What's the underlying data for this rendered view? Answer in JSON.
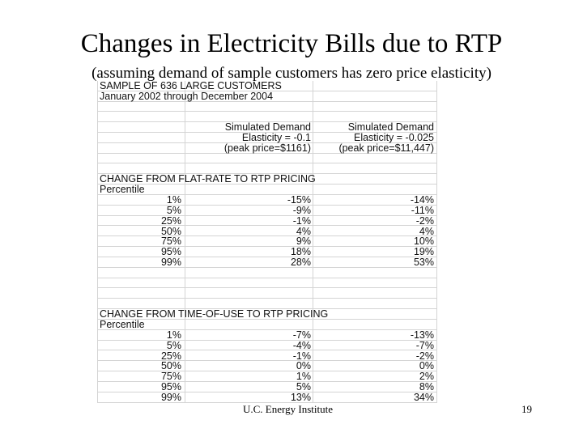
{
  "slide": {
    "title": "Changes in Electricity Bills due to RTP",
    "subtitle": "(assuming demand of sample customers has zero price elasticity)",
    "footer": "U.C. Energy Institute",
    "page_number": "19"
  },
  "table": {
    "rows": [
      [
        "SAMPLE OF 636 LARGE CUSTOMERS",
        "",
        ""
      ],
      [
        "January 2002 through December 2004",
        "",
        ""
      ],
      [
        "",
        "",
        ""
      ],
      [
        "",
        "",
        ""
      ],
      [
        "",
        "Simulated Demand",
        "Simulated Demand"
      ],
      [
        "",
        "Elasticity = -0.1",
        "Elasticity = -0.025"
      ],
      [
        "",
        "(peak price=$1161)",
        "(peak price=$11,447)"
      ],
      [
        "",
        "",
        ""
      ],
      [
        "",
        "",
        ""
      ],
      [
        "CHANGE FROM FLAT-RATE TO RTP PRICING",
        "",
        ""
      ],
      [
        "Percentile",
        "",
        ""
      ],
      [
        "1%",
        "-15%",
        "-14%"
      ],
      [
        "5%",
        "-9%",
        "-11%"
      ],
      [
        "25%",
        "-1%",
        "-2%"
      ],
      [
        "50%",
        "4%",
        "4%"
      ],
      [
        "75%",
        "9%",
        "10%"
      ],
      [
        "95%",
        "18%",
        "19%"
      ],
      [
        "99%",
        "28%",
        "53%"
      ],
      [
        "",
        "",
        ""
      ],
      [
        "",
        "",
        ""
      ],
      [
        "",
        "",
        ""
      ],
      [
        "",
        "",
        ""
      ],
      [
        "CHANGE FROM TIME-OF-USE TO RTP PRICING",
        "",
        ""
      ],
      [
        "Percentile",
        "",
        ""
      ],
      [
        "1%",
        "-7%",
        "-13%"
      ],
      [
        "5%",
        "-4%",
        "-7%"
      ],
      [
        "25%",
        "-1%",
        "-2%"
      ],
      [
        "50%",
        "0%",
        "0%"
      ],
      [
        "75%",
        "1%",
        "2%"
      ],
      [
        "95%",
        "5%",
        "8%"
      ],
      [
        "99%",
        "13%",
        "34%"
      ]
    ]
  }
}
